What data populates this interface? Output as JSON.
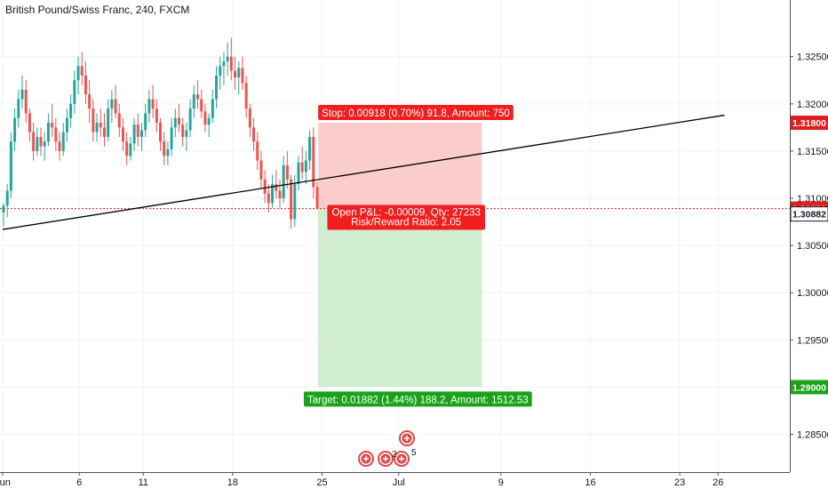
{
  "chart_data": {
    "type": "candlestick",
    "title": "British Pound/Swiss Franc, 240, FXCM",
    "ylim": [
      1.281,
      1.331
    ],
    "y_ticks": [
      "1.32500",
      "1.32000",
      "1.31500",
      "1.31000",
      "1.30500",
      "1.30000",
      "1.29500",
      "1.29000",
      "1.28500"
    ],
    "x_ticks": [
      "Jun",
      "6",
      "11",
      "18",
      "25",
      "Jul",
      "9",
      "16",
      "23",
      "26"
    ],
    "x_tick_days": [
      0,
      6,
      11,
      18,
      25,
      31,
      39,
      46,
      53,
      56
    ],
    "colors": {
      "up": "#26a69a",
      "down": "#ef5350",
      "trendline": "#000000",
      "last": "#e01e1e"
    },
    "price_labels": {
      "stop": {
        "text": "1.31800",
        "value": 1.318
      },
      "last": {
        "text": "1.30891",
        "value": 1.30891
      },
      "entry": {
        "text": "1.30882",
        "value": 1.30882
      },
      "target": {
        "text": "1.29000",
        "value": 1.29
      }
    },
    "trendline": {
      "start": {
        "day": 0,
        "value": 1.3067
      },
      "end": {
        "day": 56.5,
        "value": 1.3188
      }
    },
    "position": {
      "type": "short",
      "entry": 1.30882,
      "stop": 1.318,
      "target": 1.29,
      "start_day": 24.7,
      "end_day": 37.5,
      "stop_label": "Stop: 0.00918 (0.70%) 91.8, Amount: 750",
      "pnl_label": "Open P&L: -0.00009, Qty: 27233",
      "rr_label": "Risk/Reward Ratio: 2.05",
      "target_label": "Target: 0.01882 (1.44%) 188.2, Amount: 1512.53"
    },
    "events": {
      "badge_text": "2",
      "badge_text2": "5"
    },
    "candles": [
      [
        1.3085,
        1.3095,
        1.307,
        1.3092
      ],
      [
        1.3092,
        1.3115,
        1.308,
        1.3108
      ],
      [
        1.3108,
        1.317,
        1.31,
        1.316
      ],
      [
        1.316,
        1.3195,
        1.315,
        1.3185
      ],
      [
        1.3185,
        1.3215,
        1.3175,
        1.3205
      ],
      [
        1.3205,
        1.323,
        1.3195,
        1.3215
      ],
      [
        1.3215,
        1.3225,
        1.318,
        1.319
      ],
      [
        1.319,
        1.3195,
        1.316,
        1.317
      ],
      [
        1.317,
        1.318,
        1.314,
        1.315
      ],
      [
        1.315,
        1.3175,
        1.3145,
        1.3165
      ],
      [
        1.3165,
        1.3175,
        1.3145,
        1.3155
      ],
      [
        1.3155,
        1.317,
        1.314,
        1.316
      ],
      [
        1.316,
        1.319,
        1.3155,
        1.318
      ],
      [
        1.318,
        1.32,
        1.3165,
        1.3175
      ],
      [
        1.3175,
        1.3185,
        1.315,
        1.316
      ],
      [
        1.316,
        1.317,
        1.314,
        1.315
      ],
      [
        1.315,
        1.318,
        1.3145,
        1.317
      ],
      [
        1.317,
        1.3195,
        1.316,
        1.3185
      ],
      [
        1.3185,
        1.321,
        1.3175,
        1.32
      ],
      [
        1.32,
        1.3235,
        1.319,
        1.3225
      ],
      [
        1.3225,
        1.325,
        1.321,
        1.324
      ],
      [
        1.324,
        1.3255,
        1.322,
        1.323
      ],
      [
        1.323,
        1.3245,
        1.32,
        1.321
      ],
      [
        1.321,
        1.3225,
        1.318,
        1.3195
      ],
      [
        1.3195,
        1.3205,
        1.316,
        1.317
      ],
      [
        1.317,
        1.319,
        1.316,
        1.318
      ],
      [
        1.318,
        1.3195,
        1.3165,
        1.3175
      ],
      [
        1.3175,
        1.319,
        1.3155,
        1.3165
      ],
      [
        1.3165,
        1.3205,
        1.316,
        1.3195
      ],
      [
        1.3195,
        1.3215,
        1.318,
        1.3205
      ],
      [
        1.3205,
        1.322,
        1.3185,
        1.319
      ],
      [
        1.319,
        1.32,
        1.3165,
        1.3175
      ],
      [
        1.3175,
        1.3185,
        1.315,
        1.316
      ],
      [
        1.316,
        1.317,
        1.3135,
        1.3145
      ],
      [
        1.3145,
        1.3165,
        1.314,
        1.3158
      ],
      [
        1.3158,
        1.3185,
        1.315,
        1.3178
      ],
      [
        1.3178,
        1.319,
        1.3155,
        1.3165
      ],
      [
        1.3165,
        1.318,
        1.315,
        1.3172
      ],
      [
        1.3172,
        1.32,
        1.3165,
        1.319
      ],
      [
        1.319,
        1.3215,
        1.318,
        1.3205
      ],
      [
        1.3205,
        1.322,
        1.3185,
        1.3195
      ],
      [
        1.3195,
        1.3205,
        1.317,
        1.318
      ],
      [
        1.318,
        1.3185,
        1.315,
        1.316
      ],
      [
        1.316,
        1.317,
        1.3135,
        1.3145
      ],
      [
        1.3145,
        1.316,
        1.3135,
        1.3152
      ],
      [
        1.3152,
        1.3185,
        1.3145,
        1.3175
      ],
      [
        1.3175,
        1.3195,
        1.3165,
        1.3185
      ],
      [
        1.3185,
        1.32,
        1.317,
        1.3178
      ],
      [
        1.3178,
        1.3185,
        1.3155,
        1.3165
      ],
      [
        1.3165,
        1.318,
        1.315,
        1.3172
      ],
      [
        1.3172,
        1.3205,
        1.3165,
        1.3195
      ],
      [
        1.3195,
        1.322,
        1.3185,
        1.321
      ],
      [
        1.321,
        1.3225,
        1.3195,
        1.3205
      ],
      [
        1.3205,
        1.3215,
        1.3185,
        1.3192
      ],
      [
        1.3192,
        1.32,
        1.317,
        1.3178
      ],
      [
        1.3178,
        1.319,
        1.3165,
        1.3185
      ],
      [
        1.3185,
        1.3215,
        1.318,
        1.3205
      ],
      [
        1.3205,
        1.324,
        1.3195,
        1.323
      ],
      [
        1.323,
        1.325,
        1.3215,
        1.324
      ],
      [
        1.324,
        1.3255,
        1.322,
        1.3245
      ],
      [
        1.3245,
        1.3265,
        1.323,
        1.325
      ],
      [
        1.325,
        1.327,
        1.3225,
        1.3235
      ],
      [
        1.3235,
        1.325,
        1.3215,
        1.3228
      ],
      [
        1.3228,
        1.3245,
        1.321,
        1.3238
      ],
      [
        1.3238,
        1.325,
        1.3215,
        1.3222
      ],
      [
        1.3222,
        1.323,
        1.3185,
        1.3195
      ],
      [
        1.3195,
        1.32,
        1.3165,
        1.3175
      ],
      [
        1.3175,
        1.3185,
        1.315,
        1.316
      ],
      [
        1.316,
        1.317,
        1.313,
        1.314
      ],
      [
        1.314,
        1.315,
        1.311,
        1.312
      ],
      [
        1.312,
        1.313,
        1.3095,
        1.3105
      ],
      [
        1.3105,
        1.3115,
        1.3085,
        1.3095
      ],
      [
        1.3095,
        1.3125,
        1.309,
        1.3115
      ],
      [
        1.3115,
        1.313,
        1.31,
        1.3108
      ],
      [
        1.3108,
        1.312,
        1.309,
        1.31
      ],
      [
        1.31,
        1.3145,
        1.3095,
        1.3135
      ],
      [
        1.3135,
        1.315,
        1.311,
        1.312
      ],
      [
        1.312,
        1.3125,
        1.3068,
        1.3078
      ],
      [
        1.3078,
        1.3125,
        1.307,
        1.3115
      ],
      [
        1.3115,
        1.3145,
        1.3108,
        1.3138
      ],
      [
        1.3138,
        1.3155,
        1.312,
        1.3128
      ],
      [
        1.3128,
        1.315,
        1.3115,
        1.314
      ],
      [
        1.314,
        1.3172,
        1.313,
        1.3165
      ],
      [
        1.3165,
        1.3175,
        1.31,
        1.3112
      ],
      [
        1.3112,
        1.3118,
        1.3088,
        1.3089
      ]
    ]
  }
}
